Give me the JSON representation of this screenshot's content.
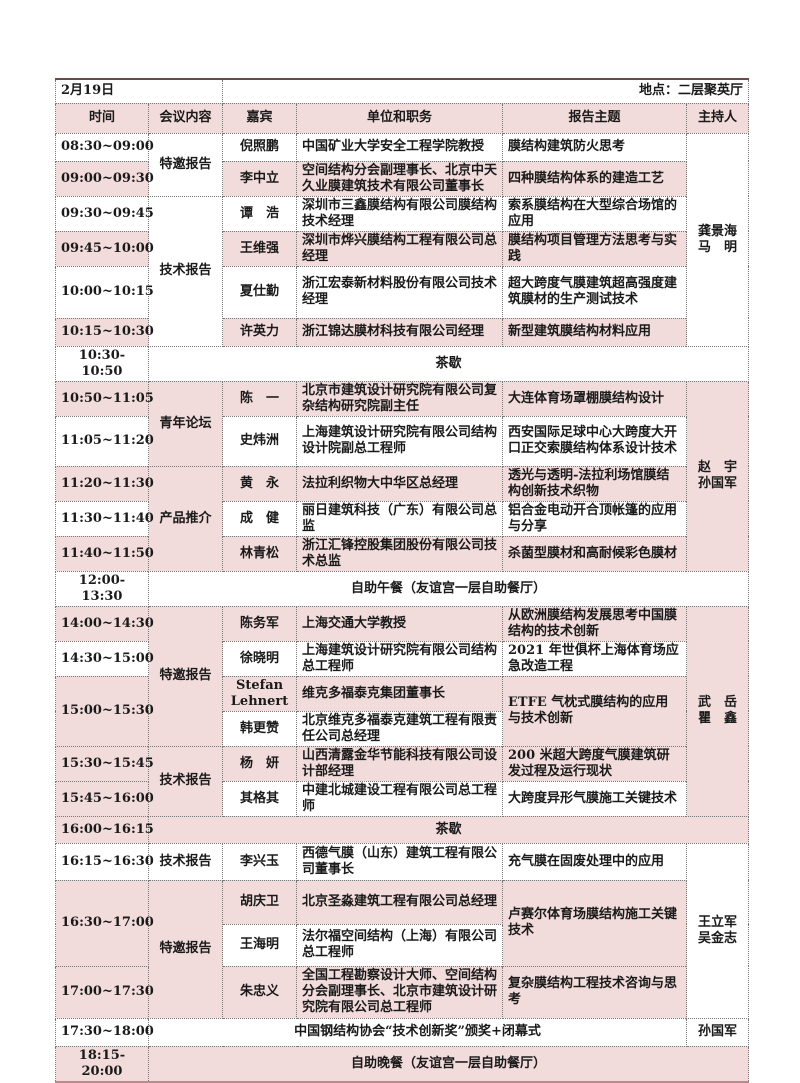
{
  "header": {
    "date": "2月19日",
    "venue": "地点：二层聚英厅"
  },
  "columns": [
    "时间",
    "会议内容",
    "嘉宾",
    "单位和职务",
    "报告主题",
    "主持人"
  ],
  "sessions": {
    "invited": "特邀报告",
    "technical": "技术报告",
    "youth": "青年论坛",
    "product": "产品推介"
  },
  "hosts": [
    "龚景海\n马　明",
    "赵　宇\n孙国军",
    "武　岳\n瞿　鑫",
    "王立军\n吴金志",
    "孙国军"
  ],
  "rows": [
    {
      "time": "08:30~09:00",
      "guest": "倪照鹏",
      "unit": "中国矿业大学安全工程学院教授",
      "topic": "膜结构建筑防火思考"
    },
    {
      "time": "09:00~09:30",
      "guest": "李中立",
      "unit": "空间结构分会副理事长、北京中天久业膜建筑技术有限公司董事长",
      "topic": "四种膜结构体系的建造工艺"
    },
    {
      "time": "09:30~09:45",
      "guest": "谭　浩",
      "unit": "深圳市三鑫膜结构有限公司膜结构技术经理",
      "topic": "索系膜结构在大型综合场馆的应用"
    },
    {
      "time": "09:45~10:00",
      "guest": "王维强",
      "unit": "深圳市烨兴膜结构工程有限公司总经理",
      "topic": "膜结构项目管理方法思考与实践"
    },
    {
      "time": "10:00~10:15",
      "guest": "夏仕勤",
      "unit": "浙江宏泰新材料股份有限公司技术经理",
      "topic": "超大跨度气膜建筑超高强度建筑膜材的生产测试技术"
    },
    {
      "time": "10:15~10:30",
      "guest": "许英力",
      "unit": "浙江锦达膜材科技有限公司经理",
      "topic": "新型建筑膜结构材料应用"
    },
    {
      "time": "10:50~11:05",
      "guest": "陈　一",
      "unit": "北京市建筑设计研究院有限公司复杂结构研究院副主任",
      "topic": "大连体育场罩棚膜结构设计"
    },
    {
      "time": "11:05~11:20",
      "guest": "史炜洲",
      "unit": "上海建筑设计研究院有限公司结构设计院副总工程师",
      "topic": "西安国际足球中心大跨度大开口正交索膜结构体系设计技术"
    },
    {
      "time": "11:20~11:30",
      "guest": "黄　永",
      "unit": "法拉利织物大中华区总经理",
      "topic": "透光与透明-法拉利场馆膜结构创新技术织物"
    },
    {
      "time": "11:30~11:40",
      "guest": "成　健",
      "unit": "丽日建筑科技（广东）有限公司总监",
      "topic": "铝合金电动开合顶帐篷的应用与分享"
    },
    {
      "time": "11:40~11:50",
      "guest": "林青松",
      "unit": "浙江汇锋控股集团股份有限公司技术总监",
      "topic": "杀菌型膜材和高耐候彩色膜材"
    },
    {
      "time": "14:00~14:30",
      "guest": "陈务军",
      "unit": "上海交通大学教授",
      "topic": "从欧洲膜结构发展思考中国膜结构的技术创新"
    },
    {
      "time": "14:30~15:00",
      "guest": "徐晓明",
      "unit": "上海建筑设计研究院有限公司结构总工程师",
      "topic": "2021 年世俱杯上海体育场应急改造工程"
    },
    {
      "time": "15:00~15:30",
      "guest": "Stefan\nLehnert",
      "unit": "维克多福泰克集团董事长",
      "topic": "ETFE 气枕式膜结构的应用与技术创新"
    },
    {
      "guest": "韩更赞",
      "unit": "北京维克多福泰克建筑工程有限责任公司总经理"
    },
    {
      "time": "15:30~15:45",
      "guest": "杨　妍",
      "unit": "山西清露金华节能科技有限公司设计部经理",
      "topic": "200 米超大跨度气膜建筑研发过程及运行现状"
    },
    {
      "time": "15:45~16:00",
      "guest": "其格其",
      "unit": "中建北城建设工程有限公司总工程师",
      "topic": "大跨度异形气膜施工关键技术"
    },
    {
      "time": "16:15~16:30",
      "guest": "李兴玉",
      "unit": "西德气膜（山东）建筑工程有限公司董事长",
      "topic": "充气膜在固废处理中的应用"
    },
    {
      "time": "16:30~17:00",
      "guest": "胡庆卫",
      "unit": "北京圣淼建筑工程有限公司总经理",
      "topic": "卢赛尔体育场膜结构施工关键技术"
    },
    {
      "guest": "王海明",
      "unit": "法尔福空间结构（上海）有限公司总工程师"
    },
    {
      "time": "17:00~17:30",
      "guest": "朱忠义",
      "unit": "全国工程勘察设计大师、空间结构分会副理事长、北京市建筑设计研究院有限公司总工程师",
      "topic": "复杂膜结构工程技术咨询与思考"
    }
  ],
  "breaks": [
    {
      "time": "10:30-10:50",
      "label": "茶歇"
    },
    {
      "time": "12:00-13:30",
      "label": "自助午餐（友谊宫一层自助餐厅）"
    },
    {
      "time": "16:00~16:15",
      "label": "茶歇"
    },
    {
      "time": "17:30~18:00",
      "label": "中国钢结构协会“技术创新奖”颁奖+闭幕式"
    },
    {
      "time": "18:15-20:00",
      "label": "自助晚餐（友谊宫一层自助餐厅）"
    }
  ],
  "colors": {
    "row_tint": "#f2dcdb",
    "border": "#777777"
  }
}
